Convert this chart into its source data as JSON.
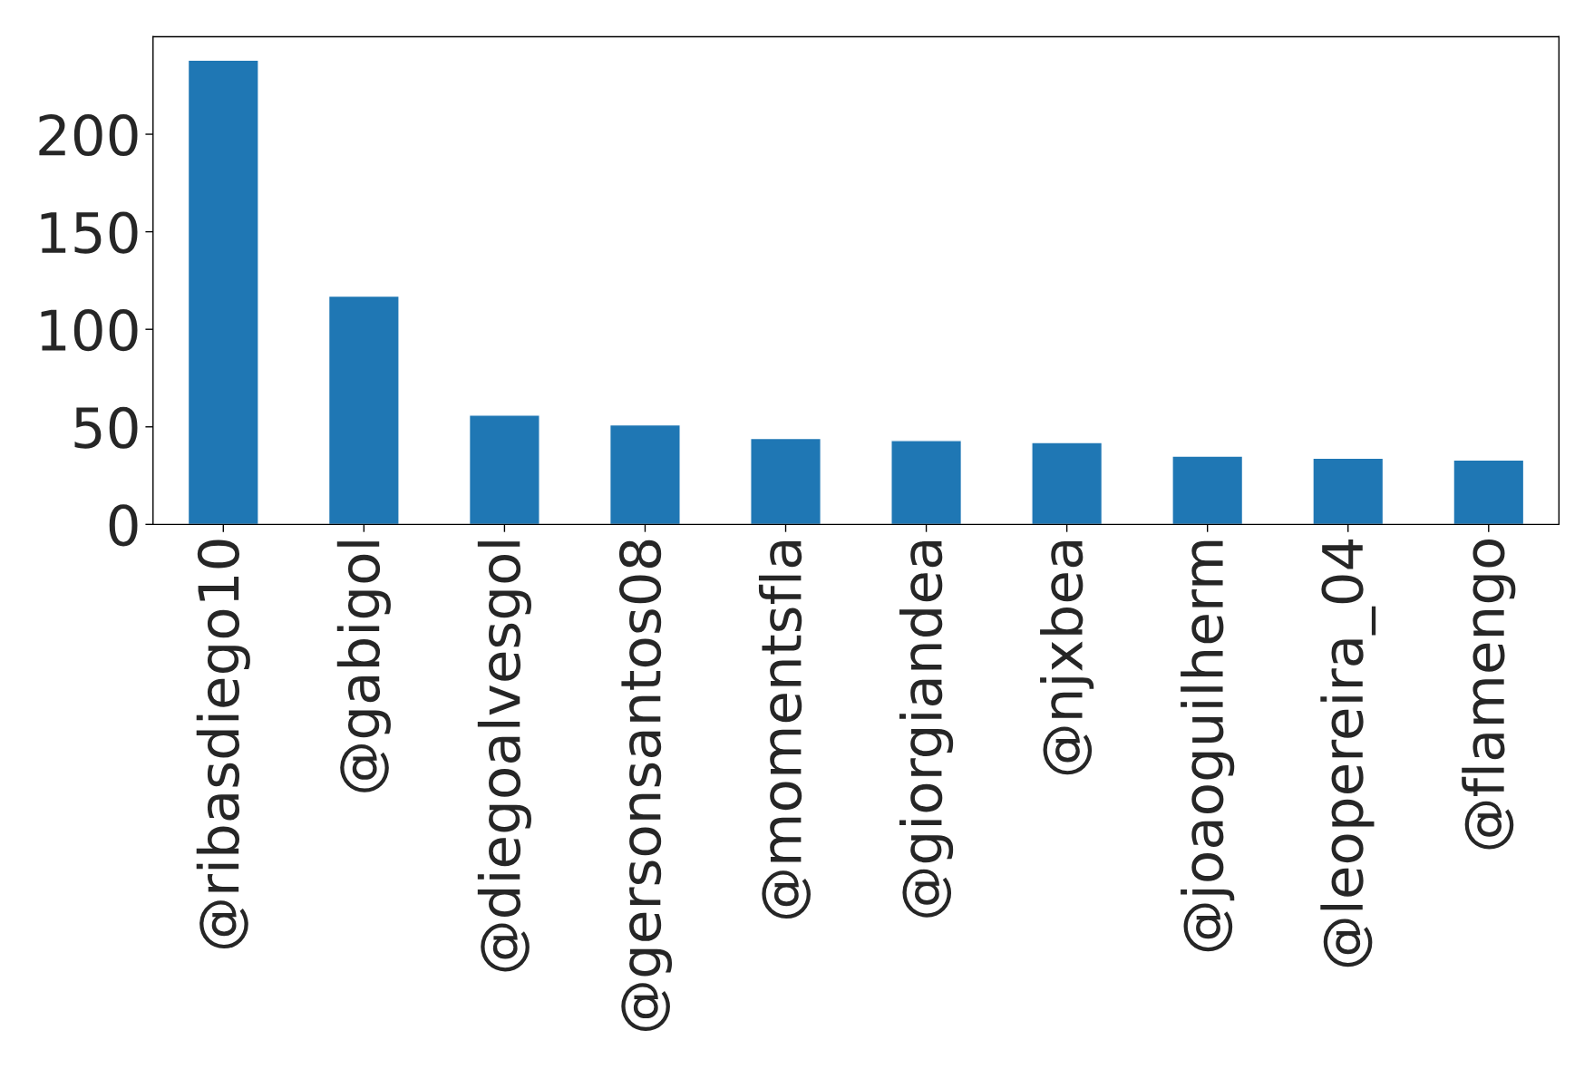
{
  "chart_data": {
    "type": "bar",
    "categories": [
      "@ribasdiego10",
      "@gabigol",
      "@diegoalvesgol",
      "@gersonsantos08",
      "@momentsfla",
      "@giorgiandea",
      "@njxbea",
      "@joaoguilherm",
      "@leopereira_04",
      "@flamengo"
    ],
    "values": [
      238,
      117,
      56,
      51,
      44,
      43,
      42,
      35,
      34,
      33
    ],
    "color": "#1f77b4",
    "ylim": [
      0,
      250
    ],
    "yticks": [
      0,
      50,
      100,
      150,
      200
    ],
    "grid": false,
    "legend": false
  }
}
